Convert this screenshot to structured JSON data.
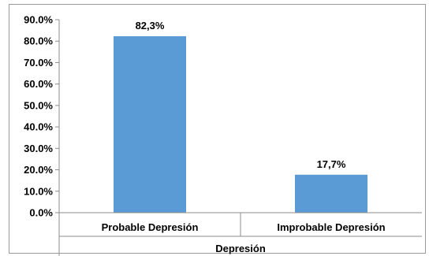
{
  "chart_data": {
    "type": "bar",
    "categories": [
      "Probable Depresión",
      "Improbable Depresión"
    ],
    "values": [
      82.3,
      17.7
    ],
    "value_labels": [
      "82,3%",
      "17,7%"
    ],
    "xlabel": "Depresión",
    "ylabel": "",
    "ylim": [
      0,
      90
    ],
    "yticks": [
      0,
      10,
      20,
      30,
      40,
      50,
      60,
      70,
      80,
      90
    ],
    "ytick_labels": [
      "0.0%",
      "10.0%",
      "20.0%",
      "30.0%",
      "40.0%",
      "50.0%",
      "60.0%",
      "70.0%",
      "80.0%",
      "90.0%"
    ],
    "grid": false,
    "legend": "none",
    "bar_color": "#5b9bd5"
  }
}
